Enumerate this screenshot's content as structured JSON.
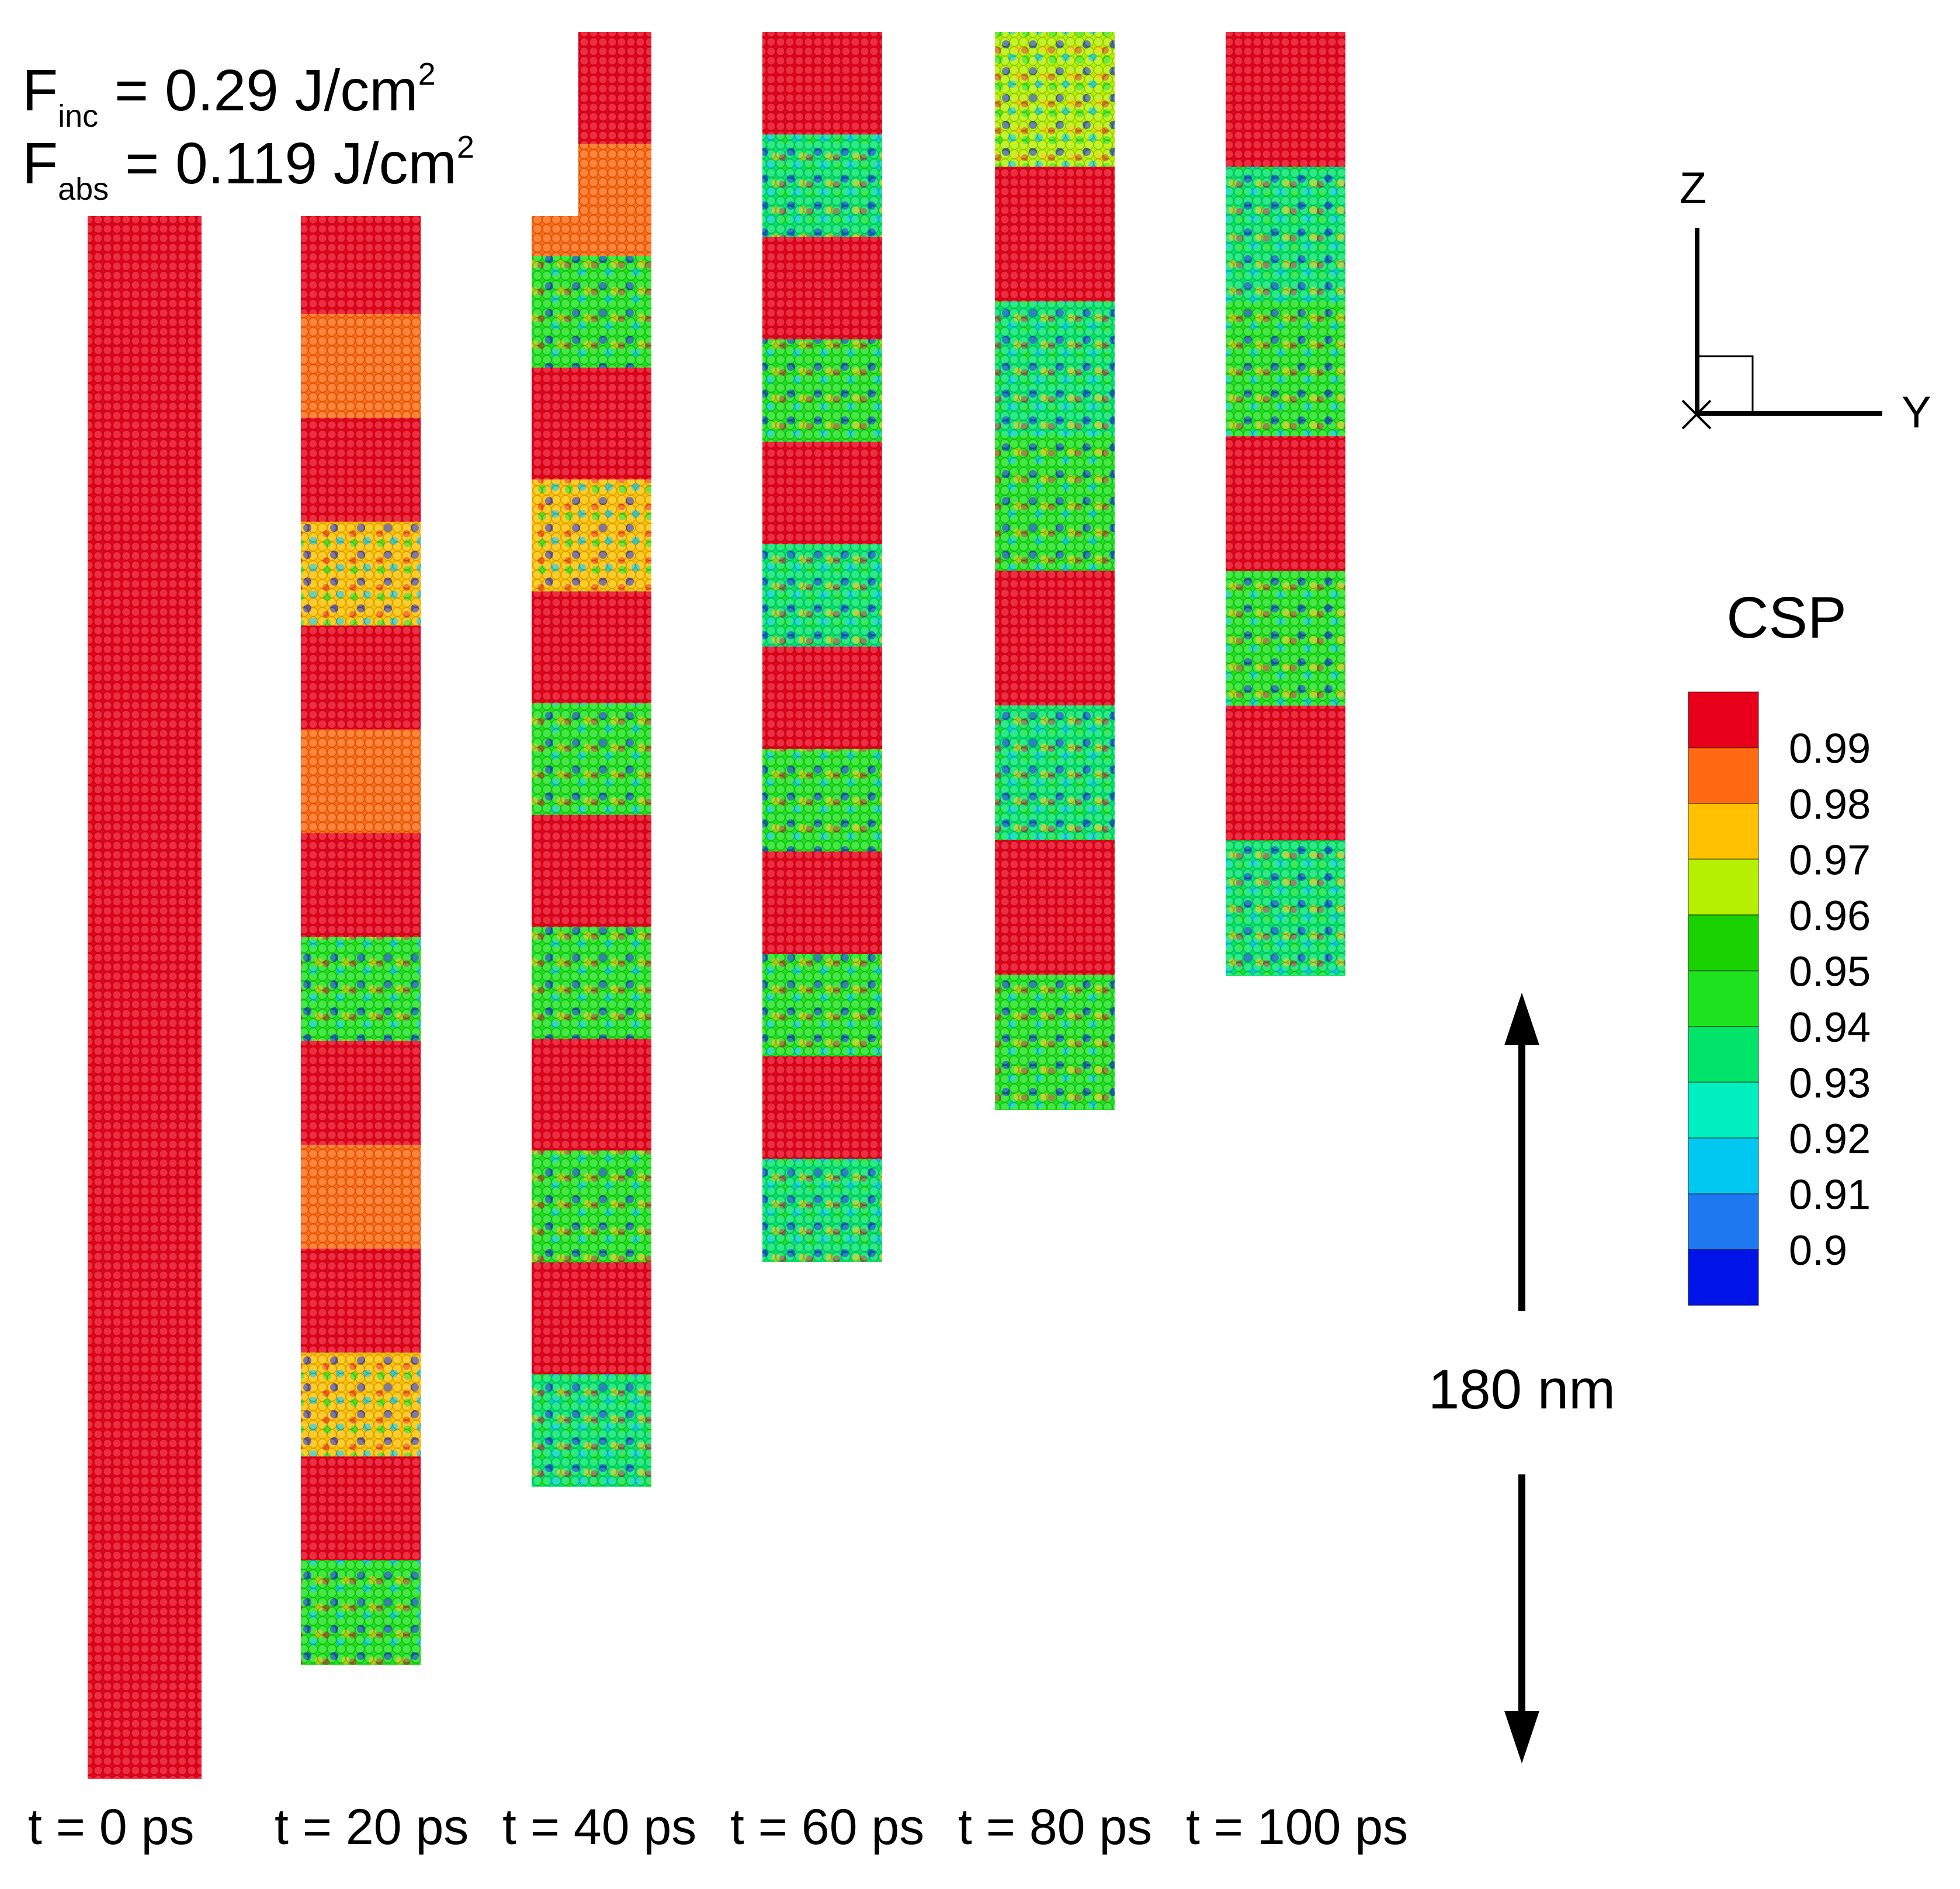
{
  "fluence": {
    "inc_sym": "F",
    "inc_sub": "inc",
    "inc_text": " = 0.29 J/cm",
    "inc_sup": "2",
    "abs_sym": "F",
    "abs_sub": "abs",
    "abs_text": " = 0.119 J/cm",
    "abs_sup": "2"
  },
  "axes": {
    "z_label": "Z",
    "y_label": "Y"
  },
  "colorbar": {
    "title": "CSP",
    "ticks": [
      "0.99",
      "0.98",
      "0.97",
      "0.96",
      "0.95",
      "0.94",
      "0.93",
      "0.92",
      "0.91",
      "0.9"
    ],
    "colors": [
      "#e8001a",
      "#ff6a12",
      "#ffc100",
      "#b5f000",
      "#1ad200",
      "#1ee21e",
      "#00e46a",
      "#00f0c0",
      "#00c8f0",
      "#1e78f0",
      "#0014e8"
    ]
  },
  "scale": {
    "label": "180 nm",
    "length_nm": 180
  },
  "time_labels": [
    "t =   0 ps",
    "t =  20 ps",
    "t =  40 ps",
    "t =  60 ps",
    "t =  80 ps",
    "t = 100 ps"
  ],
  "nanowires": [
    {
      "time_ps": 0,
      "bands": [
        "#e8001a"
      ]
    },
    {
      "time_ps": 20,
      "bands": [
        "#e8001a",
        "#ff6a12",
        "#e8001a",
        "#ffc100",
        "#e8001a",
        "#ff6a12",
        "#e8001a",
        "#1ee21e",
        "#e8001a",
        "#ff6a12",
        "#e8001a",
        "#ffc100",
        "#e8001a",
        "#1ee21e"
      ]
    },
    {
      "time_ps": 40,
      "bands": [
        "#e8001a",
        "#ff6a12",
        "#1ee21e",
        "#e8001a",
        "#ffc100",
        "#e8001a",
        "#1ee21e",
        "#e8001a",
        "#1ee21e",
        "#e8001a",
        "#1ee21e",
        "#e8001a",
        "#00e46a"
      ]
    },
    {
      "time_ps": 60,
      "bands": [
        "#e8001a",
        "#00e46a",
        "#e8001a",
        "#1ee21e",
        "#e8001a",
        "#00e46a",
        "#e8001a",
        "#1ee21e",
        "#e8001a",
        "#1ee21e",
        "#e8001a",
        "#00e46a"
      ]
    },
    {
      "time_ps": 80,
      "bands": [
        "#b5f000",
        "#e8001a",
        "#00e46a",
        "#1ee21e",
        "#e8001a",
        "#00e46a",
        "#e8001a",
        "#1ee21e"
      ]
    },
    {
      "time_ps": 100,
      "bands": [
        "#e8001a",
        "#00e46a",
        "#1ee21e",
        "#e8001a",
        "#1ee21e",
        "#e8001a",
        "#00e46a"
      ]
    }
  ]
}
